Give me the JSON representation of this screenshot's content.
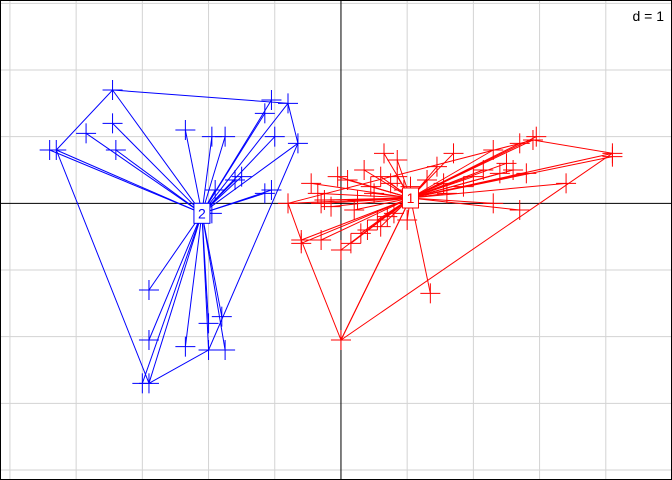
{
  "chart_data": {
    "type": "scatter",
    "title": "",
    "scale_label": "d = 1",
    "xlim": [
      -5.15,
      5.0
    ],
    "ylim": [
      -4.15,
      3.05
    ],
    "grid": true,
    "grid_step": 1,
    "axes_through_origin": true,
    "groups": [
      {
        "label": "2",
        "color": "#0000ff",
        "centroid": [
          -2.1,
          -0.15
        ],
        "points": [
          [
            -3.4,
            0.8
          ],
          [
            -3.45,
            1.2
          ],
          [
            -2.35,
            1.1
          ],
          [
            -1.95,
            1.0
          ],
          [
            -1.75,
            1.0
          ],
          [
            -1.9,
            0.2
          ],
          [
            -1.6,
            0.35
          ],
          [
            -1.5,
            0.4
          ],
          [
            -1.15,
            1.35
          ],
          [
            -1.05,
            1.55
          ],
          [
            -1.0,
            1.0
          ],
          [
            -1.15,
            0.15
          ],
          [
            -1.05,
            0.2
          ],
          [
            -1.95,
            -0.15
          ],
          [
            -3.85,
            1.05
          ],
          [
            -4.4,
            0.8
          ],
          [
            -2.9,
            -1.3
          ],
          [
            -2.9,
            -2.05
          ],
          [
            -2.35,
            -2.15
          ],
          [
            -2.0,
            -1.8
          ],
          [
            -1.8,
            -1.7
          ],
          [
            -1.75,
            -2.2
          ],
          [
            -3.0,
            -2.7
          ]
        ],
        "hull": [
          [
            -3.45,
            1.7
          ],
          [
            -0.8,
            1.5
          ],
          [
            -0.65,
            0.9
          ],
          [
            -2.0,
            -2.2
          ],
          [
            -2.9,
            -2.7
          ],
          [
            -4.3,
            0.8
          ]
        ]
      },
      {
        "label": "1",
        "color": "#ff0000",
        "centroid": [
          1.05,
          0.08
        ],
        "points": [
          [
            -0.45,
            0.3
          ],
          [
            -0.35,
            0.15
          ],
          [
            -0.3,
            0.0
          ],
          [
            -0.25,
            0.05
          ],
          [
            -0.15,
            -0.05
          ],
          [
            -0.05,
            0.4
          ],
          [
            0.1,
            0.35
          ],
          [
            0.2,
            -0.1
          ],
          [
            0.25,
            0.05
          ],
          [
            0.35,
            0.5
          ],
          [
            0.45,
            0.25
          ],
          [
            0.5,
            0.15
          ],
          [
            0.6,
            0.4
          ],
          [
            0.65,
            0.75
          ],
          [
            0.75,
            0.3
          ],
          [
            0.85,
            0.4
          ],
          [
            0.85,
            0.65
          ],
          [
            0.95,
            0.2
          ],
          [
            1.0,
            -0.25
          ],
          [
            1.05,
            0.25
          ],
          [
            -0.6,
            -0.6
          ],
          [
            -0.3,
            -0.55
          ],
          [
            0.0,
            -0.7
          ],
          [
            0.15,
            -0.6
          ],
          [
            0.3,
            -0.45
          ],
          [
            0.4,
            -0.4
          ],
          [
            0.55,
            -0.25
          ],
          [
            0.6,
            -0.35
          ],
          [
            0.7,
            -0.2
          ],
          [
            0.8,
            -0.15
          ],
          [
            1.3,
            0.35
          ],
          [
            1.45,
            0.55
          ],
          [
            1.55,
            0.3
          ],
          [
            1.6,
            0.15
          ],
          [
            1.7,
            0.75
          ],
          [
            1.85,
            0.25
          ],
          [
            2.0,
            0.4
          ],
          [
            2.15,
            0.5
          ],
          [
            2.3,
            0.8
          ],
          [
            2.4,
            0.45
          ],
          [
            2.5,
            0.6
          ],
          [
            2.6,
            0.5
          ],
          [
            2.7,
            0.9
          ],
          [
            2.8,
            0.45
          ],
          [
            2.95,
            1.0
          ],
          [
            3.4,
            0.3
          ],
          [
            4.1,
            0.7
          ],
          [
            2.3,
            0.0
          ],
          [
            2.7,
            -0.1
          ],
          [
            0.0,
            -2.05
          ],
          [
            1.35,
            -1.35
          ]
        ],
        "hull": [
          [
            -0.8,
            0.0
          ],
          [
            -0.6,
            -0.55
          ],
          [
            0.0,
            -2.05
          ],
          [
            4.1,
            0.75
          ],
          [
            2.9,
            0.95
          ]
        ]
      }
    ]
  }
}
